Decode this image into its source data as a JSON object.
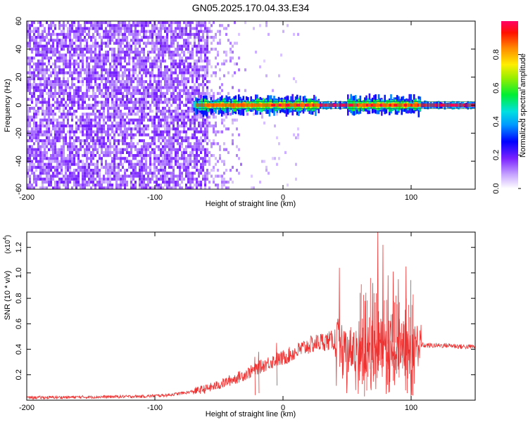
{
  "title": "GN05.2025.170.04.33.E34",
  "chart_data": [
    {
      "type": "heatmap",
      "xlabel": "Height of straight line (km)",
      "ylabel": "Frequency (Hz)",
      "xlim": [
        -200,
        150
      ],
      "ylim": [
        -60,
        60
      ],
      "xticks": [
        -200,
        -100,
        0,
        100
      ],
      "yticks": [
        -60,
        -40,
        -20,
        0,
        20,
        40,
        60
      ],
      "colorbar": {
        "label": "Normalized spectral amplitude",
        "range": [
          0,
          1
        ],
        "ticks": [
          "0.0",
          "0.2",
          "0.4",
          "0.6",
          "0.8"
        ]
      },
      "features": {
        "broadband_noise_x_range": [
          -200,
          -58
        ],
        "noise_fade_x_range": [
          -58,
          -25
        ],
        "main_line_frequency_hz": 0,
        "main_line_x_range": [
          -70,
          150
        ],
        "strong_clusters_x": [
          [
            -70,
            28
          ],
          [
            50,
            107
          ]
        ]
      },
      "grid": false
    },
    {
      "type": "line",
      "xlabel": "Height of straight line (km)",
      "ylabel": "SNR (10 * v/v)",
      "y_multiplier": "(x10",
      "y_multiplier_exp": "4",
      "xlim": [
        -200,
        150
      ],
      "ylim": [
        0,
        1.32
      ],
      "xticks": [
        -200,
        -100,
        0,
        100
      ],
      "yticks": [
        "0.2",
        "0.4",
        "0.6",
        "0.8",
        "1.0",
        "1.2"
      ],
      "series": [
        {
          "color": "#ee3333",
          "envelope_x": [
            -200,
            -150,
            -110,
            -90,
            -75,
            -60,
            -50,
            -40,
            -30,
            -20,
            -10,
            0,
            10,
            20,
            30,
            40,
            45,
            50,
            55,
            60,
            65,
            70,
            75,
            80,
            85,
            90,
            95,
            100,
            105,
            110,
            120,
            130,
            140,
            150
          ],
          "envelope_y": [
            0.02,
            0.025,
            0.03,
            0.04,
            0.06,
            0.09,
            0.12,
            0.16,
            0.2,
            0.25,
            0.3,
            0.33,
            0.38,
            0.43,
            0.46,
            0.47,
            0.46,
            0.4,
            0.42,
            0.46,
            0.4,
            0.45,
            0.5,
            0.44,
            0.45,
            0.48,
            0.44,
            0.42,
            0.44,
            0.43,
            0.43,
            0.43,
            0.42,
            0.42
          ],
          "peaks": [
            {
              "x": 44,
              "y": 1.04
            },
            {
              "x": 64,
              "y": 0.78
            },
            {
              "x": 70,
              "y": 0.92
            },
            {
              "x": 74,
              "y": 1.33
            },
            {
              "x": 78,
              "y": 1.22
            },
            {
              "x": 82,
              "y": 0.98
            },
            {
              "x": 86,
              "y": 1.01
            },
            {
              "x": 90,
              "y": 0.95
            },
            {
              "x": 96,
              "y": 1.05
            },
            {
              "x": -19,
              "y": 0.38
            },
            {
              "x": -22,
              "y": 0.34
            },
            {
              "x": -5,
              "y": 0.45
            }
          ]
        }
      ],
      "grid": false
    }
  ]
}
